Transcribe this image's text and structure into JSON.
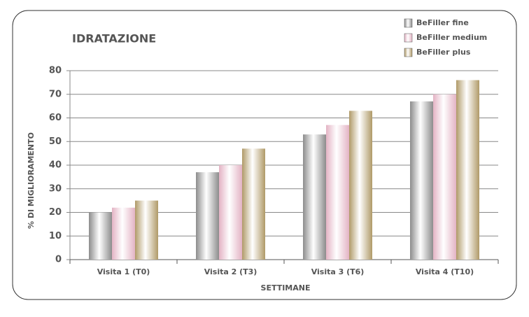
{
  "chart_data": {
    "type": "bar",
    "title": "IDRATAZIONE",
    "x_label": "SETTIMANE",
    "y_label": "% DI MIGLIORAMENTO",
    "categories": [
      "Visita 1 (T0)",
      "Visita 2 (T3)",
      "Visita 3 (T6)",
      "Visita 4 (T10)"
    ],
    "series": [
      {
        "name": "BeFiller fine",
        "color": "#8c8c8c",
        "values": [
          20,
          37,
          53,
          67
        ]
      },
      {
        "name": "BeFiller medium",
        "color": "#e3b3c4",
        "values": [
          22,
          40,
          57,
          70
        ]
      },
      {
        "name": "BeFiller plus",
        "color": "#b09a68",
        "values": [
          25,
          47,
          63,
          76
        ]
      }
    ],
    "ylim": [
      0,
      80
    ],
    "yticks": [
      0,
      10,
      20,
      30,
      40,
      50,
      60,
      70,
      80
    ],
    "grid": true,
    "legend": "top-right"
  }
}
